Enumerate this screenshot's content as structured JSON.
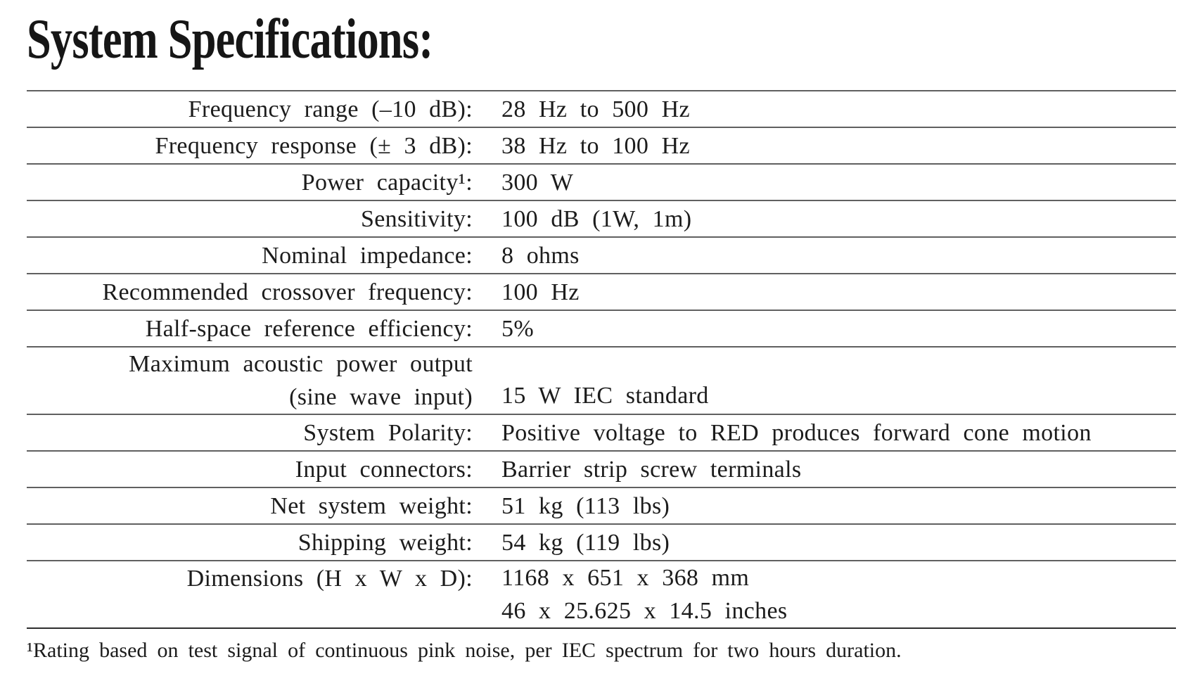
{
  "title": "System Specifications:",
  "table": {
    "rows": [
      {
        "label_lines": [
          "Frequency range (–10 dB):"
        ],
        "value_lines": [
          "28 Hz to 500 Hz"
        ]
      },
      {
        "label_lines": [
          "Frequency response (± 3 dB):"
        ],
        "value_lines": [
          "38 Hz to 100 Hz"
        ]
      },
      {
        "label_lines": [
          "Power capacity¹:"
        ],
        "value_lines": [
          "300 W"
        ]
      },
      {
        "label_lines": [
          "Sensitivity:"
        ],
        "value_lines": [
          "100 dB (1W, 1m)"
        ]
      },
      {
        "label_lines": [
          "Nominal impedance:"
        ],
        "value_lines": [
          "8 ohms"
        ]
      },
      {
        "label_lines": [
          "Recommended crossover frequency:"
        ],
        "value_lines": [
          "100 Hz"
        ]
      },
      {
        "label_lines": [
          "Half-space reference efficiency:"
        ],
        "value_lines": [
          "5%"
        ]
      },
      {
        "label_lines": [
          "Maximum acoustic power output",
          "(sine wave input)"
        ],
        "value_lines": [
          "15 W IEC standard"
        ],
        "value_valign": "bottom"
      },
      {
        "label_lines": [
          "System Polarity:"
        ],
        "value_lines": [
          "Positive voltage to RED produces forward cone motion"
        ]
      },
      {
        "label_lines": [
          "Input connectors:"
        ],
        "value_lines": [
          "Barrier strip screw terminals"
        ]
      },
      {
        "label_lines": [
          "Net system weight:"
        ],
        "value_lines": [
          "51 kg (113 lbs)"
        ]
      },
      {
        "label_lines": [
          "Shipping weight:"
        ],
        "value_lines": [
          "54 kg (119 lbs)"
        ]
      },
      {
        "label_lines": [
          "Dimensions (H x W x D):"
        ],
        "value_lines": [
          "1168 x 651 x 368 mm",
          "46 x 25.625 x 14.5 inches"
        ],
        "label_valign": "top"
      }
    ]
  },
  "footnote": "¹Rating based on test signal of continuous pink noise, per IEC spectrum for two hours duration."
}
